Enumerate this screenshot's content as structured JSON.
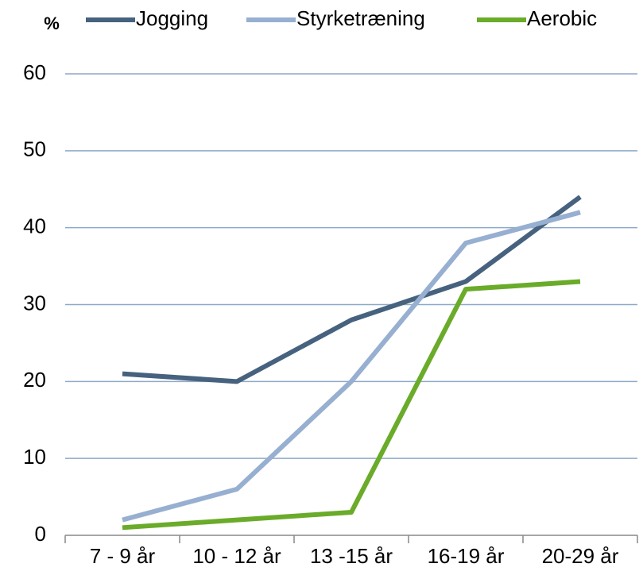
{
  "chart_data": {
    "type": "line",
    "y_label": "%",
    "categories": [
      "7 - 9 år",
      "10 - 12 år",
      "13 -15 år",
      "16-19 år",
      "20-29 år"
    ],
    "series": [
      {
        "name": "Jogging",
        "color": "#46627e",
        "values": [
          21,
          20,
          28,
          33,
          44
        ]
      },
      {
        "name": "Styrketræning",
        "color": "#97afd0",
        "values": [
          2,
          6,
          20,
          38,
          42
        ]
      },
      {
        "name": "Aerobic",
        "color": "#6aab2a",
        "values": [
          1,
          2,
          3,
          32,
          33
        ]
      }
    ],
    "ylim": [
      0,
      60
    ],
    "yticks": [
      0,
      10,
      20,
      30,
      40,
      50,
      60
    ],
    "grid": true,
    "legend": "top"
  }
}
